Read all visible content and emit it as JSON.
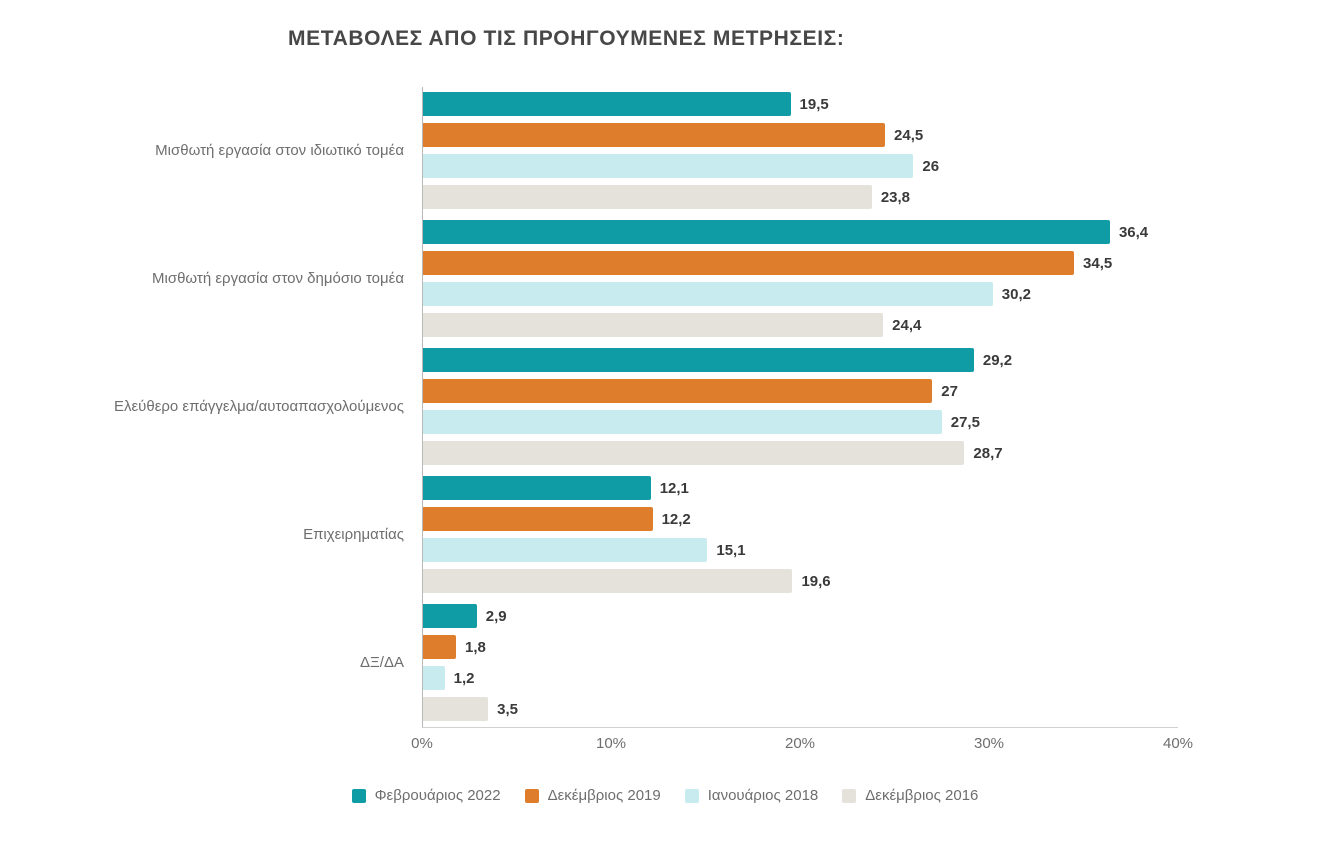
{
  "title": "ΜΕΤΑΒΟΛΕΣ ΑΠΟ ΤΙΣ ΠΡΟΗΓΟΥΜΕΝΕΣ ΜΕΤΡΗΣΕΙΣ:",
  "colors": {
    "series_2022": "#0F9CA5",
    "series_2019": "#DE7E2C",
    "series_2018": "#C8EBEF",
    "series_2016": "#E5E2DC",
    "value_label": "#3A3A3A",
    "axis_text": "#6E6E6E"
  },
  "chart_data": {
    "type": "bar",
    "orientation": "horizontal",
    "title": "ΜΕΤΑΒΟΛΕΣ ΑΠΟ ΤΙΣ ΠΡΟΗΓΟΥΜΕΝΕΣ ΜΕΤΡΗΣΕΙΣ:",
    "categories": [
      "Μισθωτή εργασία στον ιδιωτικό τομέα",
      "Μισθωτή εργασία στον δημόσιο τομέα",
      "Ελεύθερο επάγγελμα/αυτοαπασχολούμενος",
      "Επιχειρηματίας",
      "ΔΞ/ΔΑ"
    ],
    "series": [
      {
        "name": "Φεβρουάριος 2022",
        "color": "#0F9CA5",
        "values": [
          19.5,
          36.4,
          29.2,
          12.1,
          2.9
        ],
        "labels": [
          "19,5",
          "36,4",
          "29,2",
          "12,1",
          "2,9"
        ]
      },
      {
        "name": "Δεκέμβριος 2019",
        "color": "#DE7E2C",
        "values": [
          24.5,
          34.5,
          27,
          12.2,
          1.8
        ],
        "labels": [
          "24,5",
          "34,5",
          "27",
          "12,2",
          "1,8"
        ]
      },
      {
        "name": "Ιανουάριος 2018",
        "color": "#C8EBEF",
        "values": [
          26,
          30.2,
          27.5,
          15.1,
          1.2
        ],
        "labels": [
          "26",
          "30,2",
          "27,5",
          "15,1",
          "1,2"
        ]
      },
      {
        "name": "Δεκέμβριος 2016",
        "color": "#E5E2DC",
        "values": [
          23.8,
          24.4,
          28.7,
          19.6,
          3.5
        ],
        "labels": [
          "23,8",
          "24,4",
          "28,7",
          "19,6",
          "3,5"
        ]
      }
    ],
    "x_axis": {
      "min": 0,
      "max": 40,
      "ticks": [
        "0%",
        "10%",
        "20%",
        "30%",
        "40%"
      ]
    },
    "grid": false,
    "legend_position": "bottom"
  }
}
